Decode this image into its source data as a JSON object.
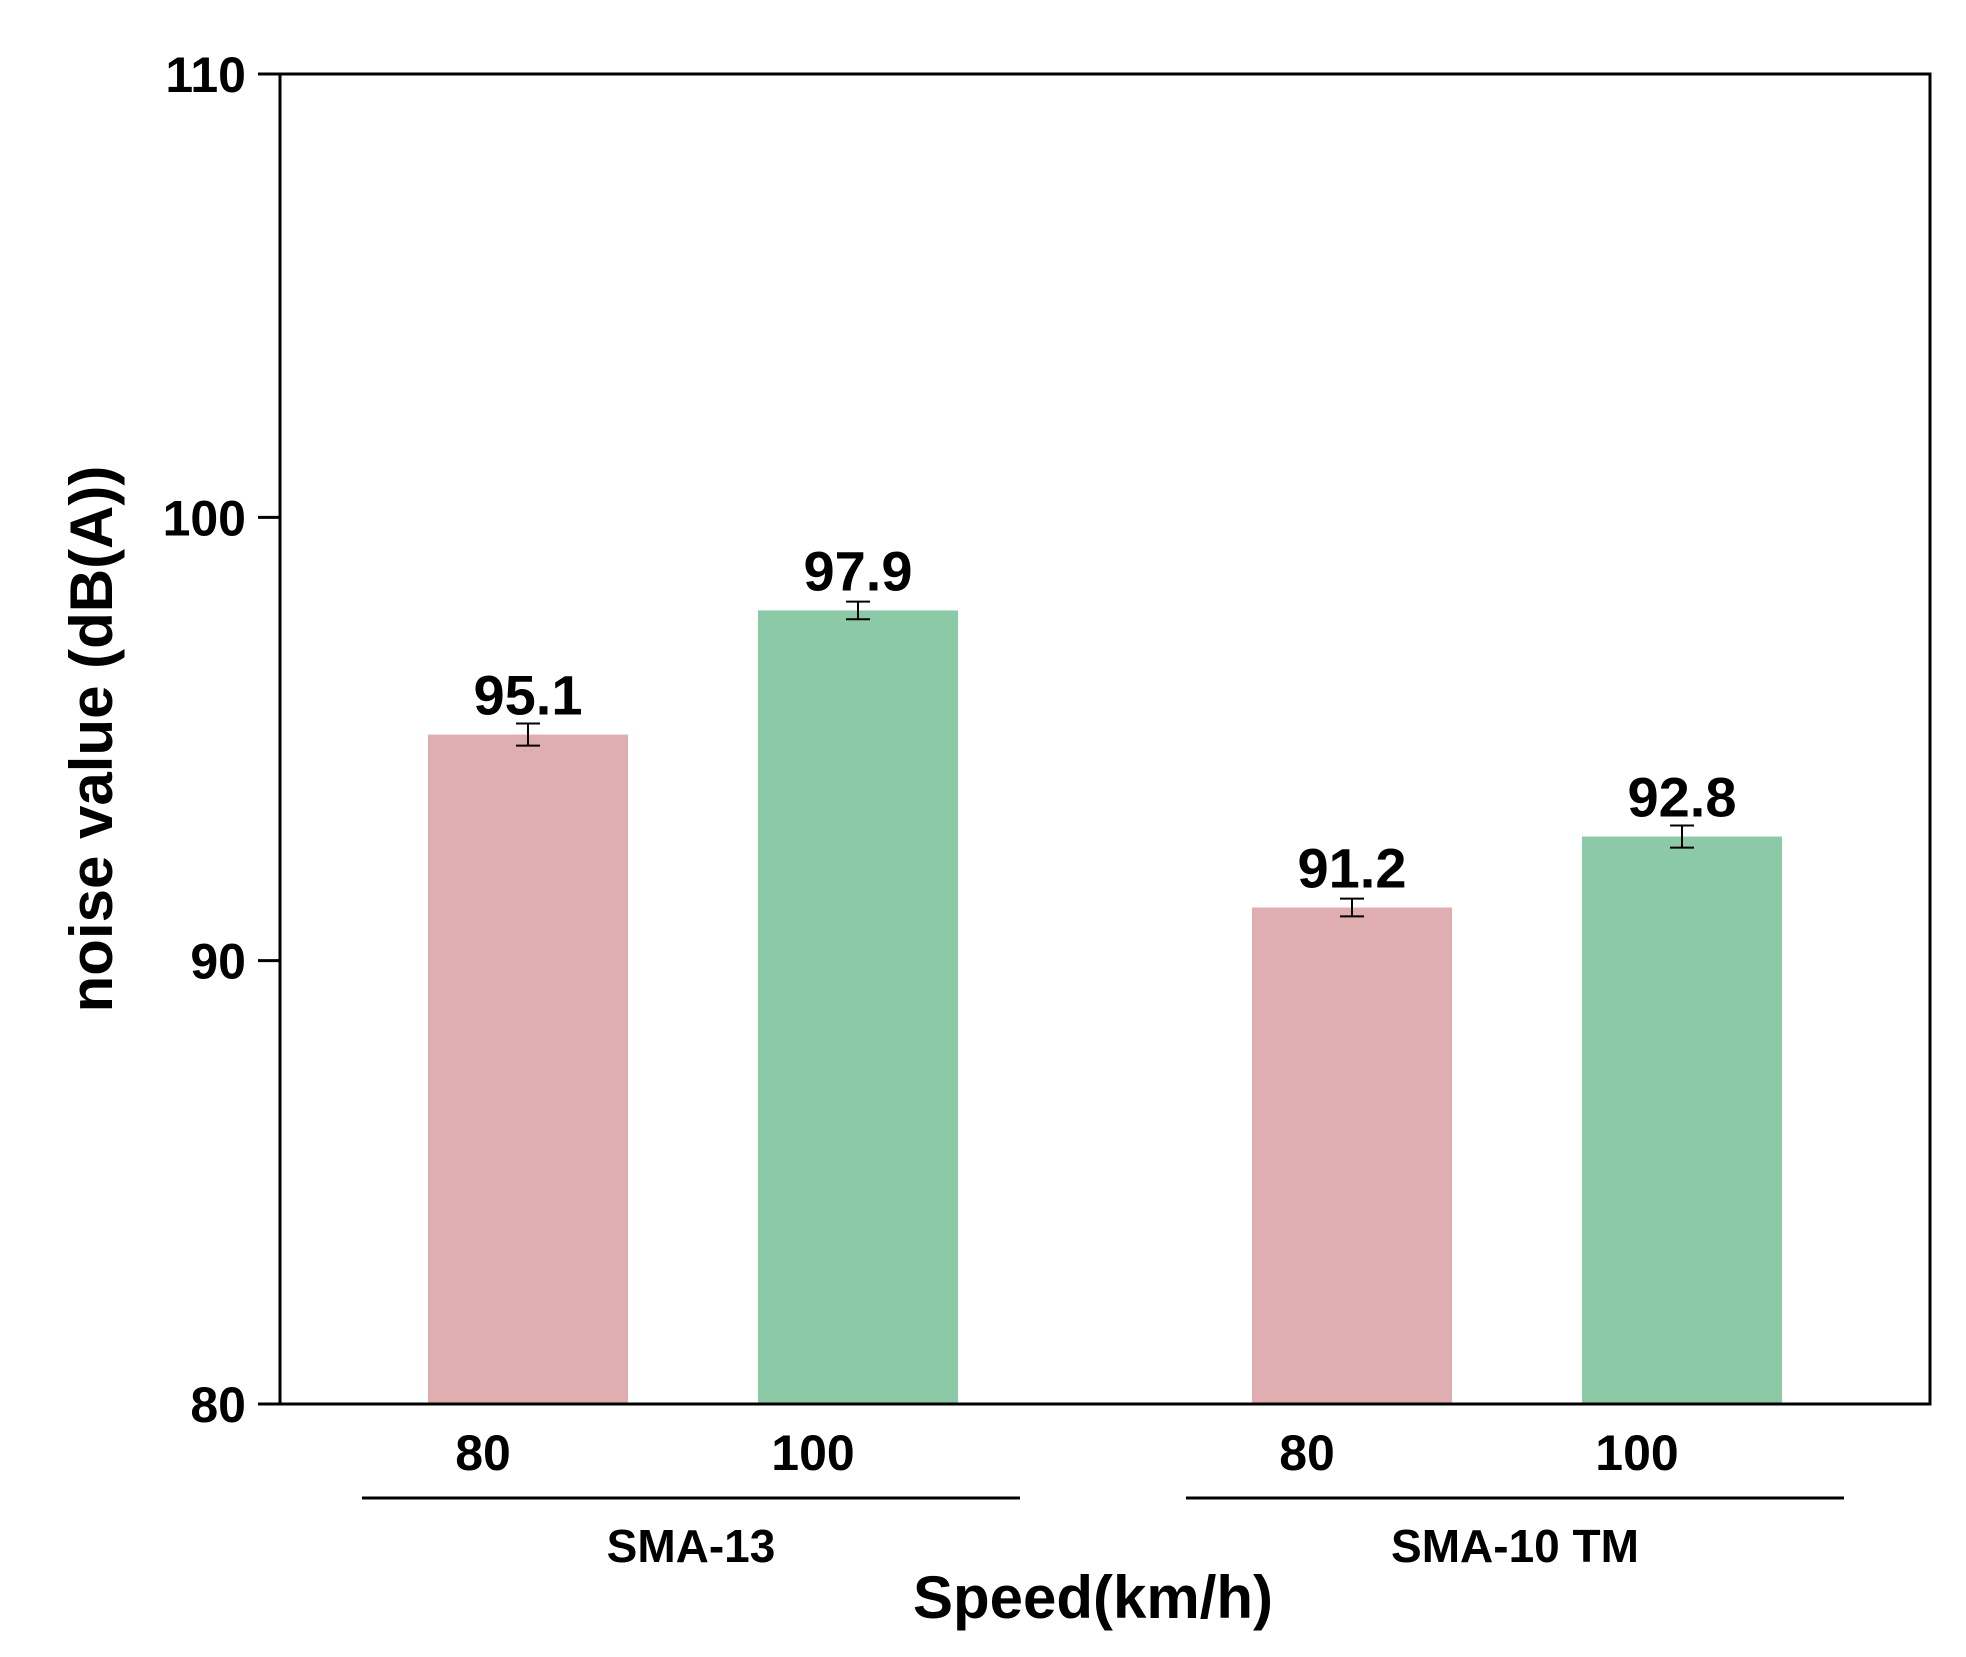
{
  "chart_data": {
    "type": "bar",
    "title": "",
    "ylabel": "noise value (dB(A))",
    "xlabel": "Speed(km/h)",
    "ylim": [
      80,
      110
    ],
    "yticks": [
      80,
      90,
      100,
      110
    ],
    "groups": [
      {
        "name": "SMA-13",
        "bars": [
          {
            "category": "80",
            "value": 95.1,
            "label": "95.1",
            "error": 0.25
          },
          {
            "category": "100",
            "value": 97.9,
            "label": "97.9",
            "error": 0.2
          }
        ]
      },
      {
        "name": "SMA-10 TM",
        "bars": [
          {
            "category": "80",
            "value": 91.2,
            "label": "91.2",
            "error": 0.2
          },
          {
            "category": "100",
            "value": 92.8,
            "label": "92.8",
            "error": 0.25
          }
        ]
      }
    ],
    "colors": {
      "80": "#e0aeb0",
      "100": "#8ccaa7"
    },
    "grid": false,
    "legend": "none"
  }
}
